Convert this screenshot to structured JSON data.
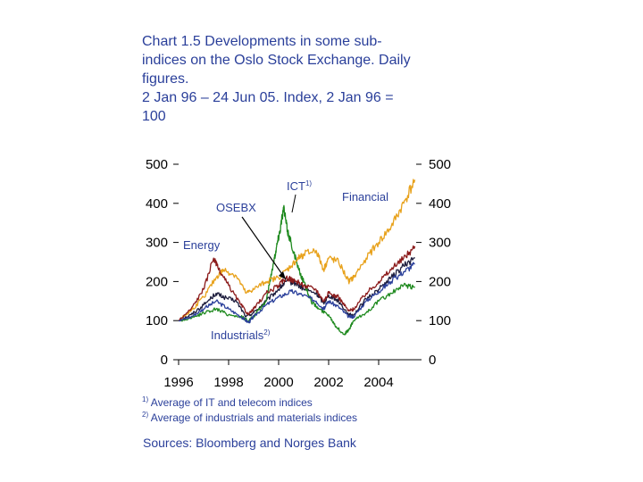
{
  "title": {
    "lines": [
      "Chart 1.5 Developments in some sub-",
      "indices on the Oslo Stock Exchange. Daily",
      "figures.",
      "2 Jan 96 – 24 Jun 05. Index, 2 Jan 96 =",
      "100"
    ]
  },
  "footnotes": {
    "fn1_mark": "1)",
    "fn1_text": "Average of IT and telecom indices",
    "fn2_mark": "2)",
    "fn2_text": "Average of industrials and materials indices"
  },
  "source": "Sources: Bloomberg and Norges Bank",
  "colors": {
    "text": "#2a3f9a",
    "osebx": "#1c1c3c",
    "ict": "#1f8a1f",
    "financial": "#e8a21c",
    "energy": "#8b1a1a",
    "industrials": "#2a3f9a"
  },
  "chart_data": {
    "type": "line",
    "ylim": [
      0,
      500
    ],
    "xlim": [
      1996.0,
      2005.5
    ],
    "yticks_left": [
      "0",
      "100",
      "200",
      "300",
      "400",
      "500"
    ],
    "yticks_right": [
      "0",
      "100",
      "200",
      "300",
      "400",
      "500"
    ],
    "xticks": [
      "1996",
      "1998",
      "2000",
      "2002",
      "2004"
    ],
    "series": [
      {
        "name": "OSEBX",
        "label": "OSEBX",
        "color": "#1c1c3c",
        "x": [
          1996.0,
          1996.5,
          1997.0,
          1997.5,
          1997.8,
          1998.3,
          1998.7,
          1999.0,
          1999.5,
          2000.0,
          2000.3,
          2000.7,
          2001.0,
          2001.5,
          2001.8,
          2002.0,
          2002.4,
          2002.8,
          2003.0,
          2003.5,
          2004.0,
          2004.5,
          2005.0,
          2005.45
        ],
        "y": [
          100,
          115,
          140,
          170,
          160,
          150,
          110,
          120,
          150,
          180,
          200,
          195,
          180,
          170,
          145,
          165,
          150,
          115,
          115,
          155,
          180,
          210,
          240,
          260
        ]
      },
      {
        "name": "ICT",
        "label": "ICT",
        "sup": "1)",
        "color": "#1f8a1f",
        "x": [
          1996.0,
          1996.5,
          1997.0,
          1997.5,
          1998.0,
          1998.5,
          1998.8,
          1999.0,
          1999.5,
          1999.8,
          1999.95,
          2000.05,
          2000.2,
          2000.35,
          2000.5,
          2000.8,
          2001.0,
          2001.3,
          2001.6,
          2002.0,
          2002.3,
          2002.6,
          2002.8,
          2003.0,
          2003.5,
          2004.0,
          2004.5,
          2005.0,
          2005.45
        ],
        "y": [
          100,
          105,
          120,
          130,
          115,
          110,
          100,
          110,
          150,
          250,
          300,
          330,
          390,
          330,
          300,
          230,
          200,
          150,
          130,
          115,
          85,
          65,
          75,
          100,
          120,
          150,
          170,
          190,
          185
        ]
      },
      {
        "name": "Financial",
        "label": "Financial",
        "color": "#e8a21c",
        "x": [
          1996.0,
          1996.5,
          1997.0,
          1997.5,
          1997.8,
          1998.3,
          1998.7,
          1999.0,
          1999.5,
          2000.0,
          2000.5,
          2000.8,
          2001.0,
          2001.5,
          2001.8,
          2002.0,
          2002.4,
          2002.8,
          2003.0,
          2003.5,
          2004.0,
          2004.5,
          2005.0,
          2005.45
        ],
        "y": [
          100,
          125,
          160,
          210,
          230,
          215,
          170,
          180,
          200,
          210,
          240,
          260,
          270,
          280,
          230,
          260,
          250,
          200,
          210,
          260,
          300,
          340,
          400,
          460
        ]
      },
      {
        "name": "Energy",
        "label": "Energy",
        "color": "#8b1a1a",
        "x": [
          1996.0,
          1996.5,
          1997.0,
          1997.4,
          1997.6,
          1998.0,
          1998.5,
          1998.8,
          1999.0,
          1999.5,
          2000.0,
          2000.3,
          2000.7,
          2001.0,
          2001.5,
          2001.8,
          2002.0,
          2002.4,
          2002.8,
          2003.0,
          2003.5,
          2004.0,
          2004.5,
          2005.0,
          2005.45
        ],
        "y": [
          100,
          130,
          180,
          260,
          230,
          190,
          140,
          115,
          130,
          170,
          190,
          210,
          200,
          190,
          180,
          150,
          170,
          160,
          125,
          130,
          170,
          200,
          230,
          260,
          290
        ]
      },
      {
        "name": "Industrials",
        "label": "Industrials",
        "sup": "2)",
        "color": "#2a3f9a",
        "x": [
          1996.0,
          1996.5,
          1997.0,
          1997.5,
          1998.0,
          1998.5,
          1998.8,
          1999.0,
          1999.5,
          2000.0,
          2000.5,
          2001.0,
          2001.5,
          2001.8,
          2002.0,
          2002.4,
          2002.8,
          2003.0,
          2003.5,
          2004.0,
          2004.5,
          2005.0,
          2005.45
        ],
        "y": [
          100,
          110,
          130,
          150,
          130,
          110,
          95,
          110,
          140,
          160,
          175,
          165,
          150,
          130,
          150,
          135,
          110,
          110,
          150,
          175,
          200,
          225,
          245
        ]
      }
    ]
  }
}
